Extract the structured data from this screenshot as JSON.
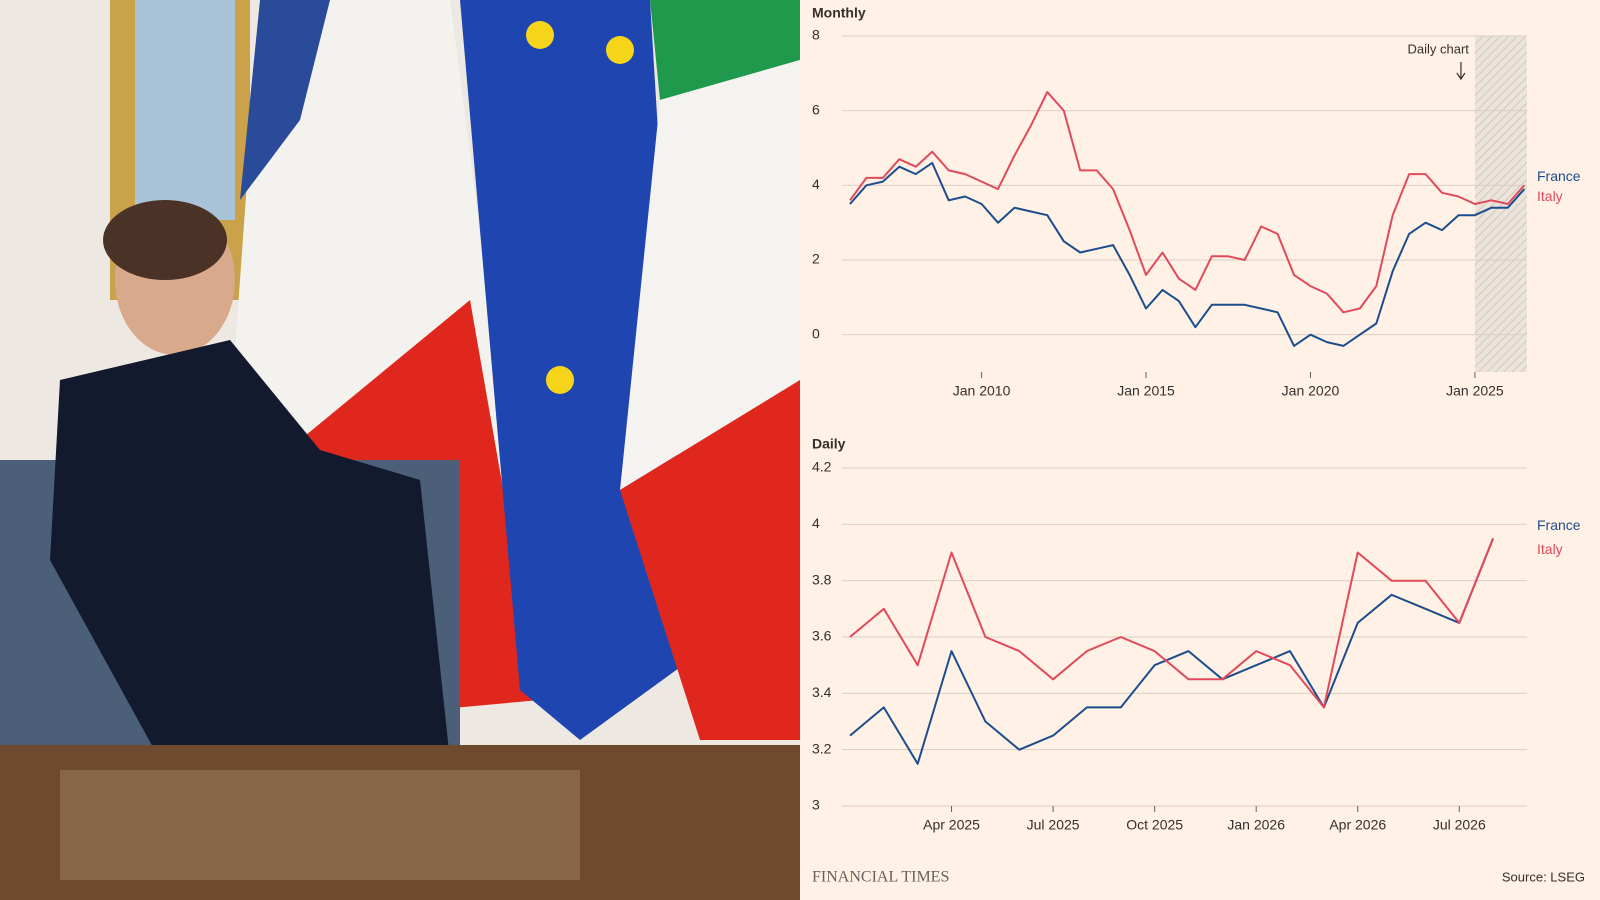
{
  "chart_data": [
    {
      "type": "line",
      "title": "Monthly",
      "x": [
        "Jan 2006",
        "Jul 2006",
        "Jan 2007",
        "Jul 2007",
        "Jan 2008",
        "Jul 2008",
        "Jan 2009",
        "Jul 2009",
        "Jan 2010",
        "Jul 2010",
        "Jan 2011",
        "Jul 2011",
        "Jan 2012",
        "Jul 2012",
        "Jan 2013",
        "Jul 2013",
        "Jan 2014",
        "Jul 2014",
        "Jan 2015",
        "Jul 2015",
        "Jan 2016",
        "Jul 2016",
        "Jan 2017",
        "Jul 2017",
        "Jan 2018",
        "Jul 2018",
        "Jan 2019",
        "Jul 2019",
        "Jan 2020",
        "Jul 2020",
        "Jan 2021",
        "Jul 2021",
        "Jan 2022",
        "Jul 2022",
        "Jan 2023",
        "Jul 2023",
        "Jan 2024",
        "Jul 2024",
        "Jan 2025",
        "Jul 2025",
        "Jan 2026",
        "Jul 2026"
      ],
      "series": [
        {
          "name": "France",
          "color": "#1c4d8c",
          "values": [
            3.5,
            4.0,
            4.1,
            4.5,
            4.3,
            4.6,
            3.6,
            3.7,
            3.5,
            3.0,
            3.4,
            3.3,
            3.2,
            2.5,
            2.2,
            2.3,
            2.4,
            1.6,
            0.7,
            1.2,
            0.9,
            0.2,
            0.8,
            0.8,
            0.8,
            0.7,
            0.6,
            -0.3,
            0.0,
            -0.2,
            -0.3,
            0.0,
            0.3,
            1.7,
            2.7,
            3.0,
            2.8,
            3.2,
            3.2,
            3.4,
            3.4,
            3.9
          ]
        },
        {
          "name": "Italy",
          "color": "#e04b5c",
          "values": [
            3.6,
            4.2,
            4.2,
            4.7,
            4.5,
            4.9,
            4.4,
            4.3,
            4.1,
            3.9,
            4.8,
            5.6,
            6.5,
            6.0,
            4.4,
            4.4,
            3.9,
            2.8,
            1.6,
            2.2,
            1.5,
            1.2,
            2.1,
            2.1,
            2.0,
            2.9,
            2.7,
            1.6,
            1.3,
            1.1,
            0.6,
            0.7,
            1.3,
            3.2,
            4.3,
            4.3,
            3.8,
            3.7,
            3.5,
            3.6,
            3.5,
            4.0
          ]
        }
      ],
      "xlim": [
        "Jan 2006",
        "Aug 2026"
      ],
      "xticks": [
        "Jan 2010",
        "Jan 2015",
        "Jan 2020",
        "Jan 2025"
      ],
      "ylim": [
        -1,
        8
      ],
      "yticks": [
        0,
        2,
        4,
        6,
        8
      ],
      "grid": true,
      "shaded_range": [
        "Jan 2025",
        "Aug 2026"
      ],
      "annotation": "Daily chart"
    },
    {
      "type": "line",
      "title": "Daily",
      "x": [
        "Jan 2025",
        "Feb 2025",
        "Mar 2025",
        "Apr 2025",
        "May 2025",
        "Jun 2025",
        "Jul 2025",
        "Aug 2025",
        "Sep 2025",
        "Oct 2025",
        "Nov 2025",
        "Dec 2025",
        "Jan 2026",
        "Feb 2026",
        "Mar 2026",
        "Apr 2026",
        "May 2026",
        "Jun 2026",
        "Jul 2026",
        "Aug 2026"
      ],
      "series": [
        {
          "name": "France",
          "color": "#1c4d8c",
          "values": [
            3.25,
            3.35,
            3.15,
            3.55,
            3.3,
            3.2,
            3.25,
            3.35,
            3.35,
            3.5,
            3.55,
            3.45,
            3.5,
            3.55,
            3.35,
            3.65,
            3.75,
            3.7,
            3.65,
            3.95
          ]
        },
        {
          "name": "Italy",
          "color": "#e04b5c",
          "values": [
            3.6,
            3.7,
            3.5,
            3.9,
            3.6,
            3.55,
            3.45,
            3.55,
            3.6,
            3.55,
            3.45,
            3.45,
            3.55,
            3.5,
            3.35,
            3.9,
            3.8,
            3.8,
            3.65,
            3.95
          ]
        }
      ],
      "xlim": [
        "Jan 2025",
        "Sep 2026"
      ],
      "xticks": [
        "Apr 2025",
        "Jul 2025",
        "Oct 2025",
        "Jan 2026",
        "Apr 2026",
        "Jul 2026"
      ],
      "ylim": [
        3,
        4.2
      ],
      "yticks": [
        3,
        3.2,
        3.4,
        3.6,
        3.8,
        4,
        4.2
      ],
      "grid": true
    }
  ],
  "footer": {
    "brand": "FINANCIAL TIMES",
    "source": "Source: LSEG"
  }
}
